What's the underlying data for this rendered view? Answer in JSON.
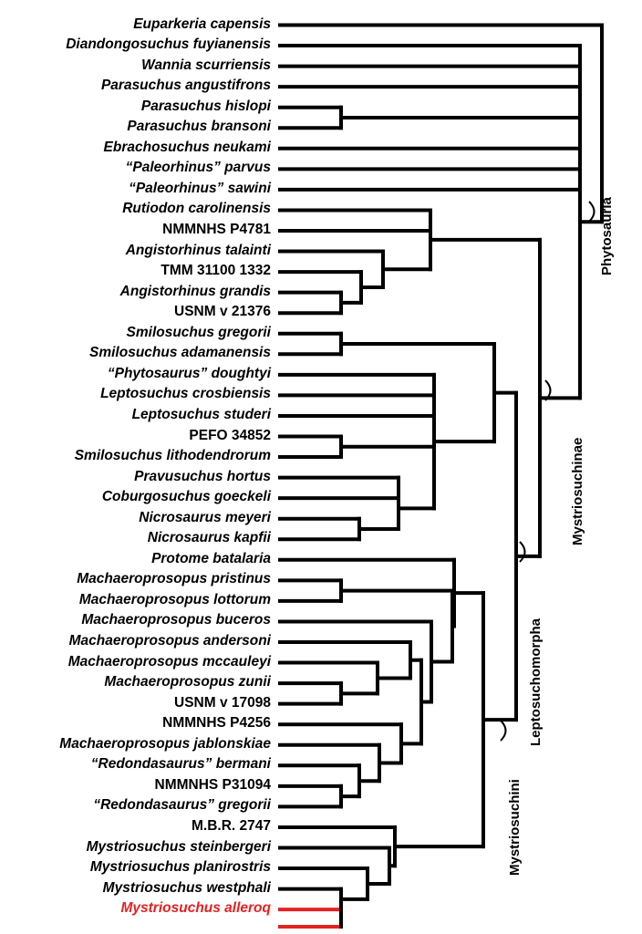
{
  "figure": {
    "type": "cladogram",
    "line_color": "#000000",
    "highlight_color": "#e32222"
  },
  "taxa": [
    {
      "name": "Euparkeria capensis",
      "italic": true
    },
    {
      "name": "Diandongosuchus fuyianensis",
      "italic": true
    },
    {
      "name": "Wannia scurriensis",
      "italic": true
    },
    {
      "name": "Parasuchus angustifrons",
      "italic": true
    },
    {
      "name": "Parasuchus hislopi",
      "italic": true
    },
    {
      "name": "Parasuchus bransoni",
      "italic": true
    },
    {
      "name": "Ebrachosuchus neukami",
      "italic": true
    },
    {
      "name": "“Paleorhinus” parvus",
      "italic": true
    },
    {
      "name": "“Paleorhinus” sawini",
      "italic": true
    },
    {
      "name": "Rutiodon carolinensis",
      "italic": true
    },
    {
      "name": "NMMNHS P4781",
      "italic": false
    },
    {
      "name": "Angistorhinus talainti",
      "italic": true
    },
    {
      "name": "TMM 31100 1332",
      "italic": false
    },
    {
      "name": "Angistorhinus grandis",
      "italic": true
    },
    {
      "name": "USNM v 21376",
      "italic": false
    },
    {
      "name": "Smilosuchus gregorii",
      "italic": true
    },
    {
      "name": "Smilosuchus adamanensis",
      "italic": true
    },
    {
      "name": "“Phytosaurus” doughtyi",
      "italic": true
    },
    {
      "name": "Leptosuchus crosbiensis",
      "italic": true
    },
    {
      "name": "Leptosuchus studeri",
      "italic": true
    },
    {
      "name": "PEFO 34852",
      "italic": false
    },
    {
      "name": "Smilosuchus lithodendrorum",
      "italic": true
    },
    {
      "name": "Pravusuchus hortus",
      "italic": true
    },
    {
      "name": "Coburgosuchus goeckeli",
      "italic": true
    },
    {
      "name": "Nicrosaurus meyeri",
      "italic": true
    },
    {
      "name": "Nicrosaurus kapfii",
      "italic": true
    },
    {
      "name": "Protome batalaria",
      "italic": true
    },
    {
      "name": "Machaeroprosopus pristinus",
      "italic": true
    },
    {
      "name": "Machaeroprosopus lottorum",
      "italic": true
    },
    {
      "name": "Machaeroprosopus buceros",
      "italic": true
    },
    {
      "name": "Machaeroprosopus andersoni",
      "italic": true
    },
    {
      "name": "Machaeroprosopus mccauleyi",
      "italic": true
    },
    {
      "name": "Machaeroprosopus zunii",
      "italic": true
    },
    {
      "name": "USNM v 17098",
      "italic": false
    },
    {
      "name": "NMMNHS P4256",
      "italic": false
    },
    {
      "name": "Machaeroprosopus jablonskiae",
      "italic": true
    },
    {
      "name": "“Redondasaurus” bermani",
      "italic": true
    },
    {
      "name": "NMMNHS P31094",
      "italic": false
    },
    {
      "name": "“Redondasaurus” gregorii",
      "italic": true
    },
    {
      "name": "M.B.R. 2747",
      "italic": false
    },
    {
      "name": "Mystriosuchus steinbergeri",
      "italic": true
    },
    {
      "name": "Mystriosuchus planirostris",
      "italic": true
    },
    {
      "name": "Mystriosuchus westphali",
      "italic": true
    },
    {
      "name": "Mystriosuchus alleroq",
      "italic": true,
      "highlight": true
    }
  ],
  "clades": [
    {
      "label": "Phytosauria"
    },
    {
      "label": "Mystriosuchinae"
    },
    {
      "label": "Leptosuchomorpha"
    },
    {
      "label": "Mystriosuchini"
    }
  ]
}
